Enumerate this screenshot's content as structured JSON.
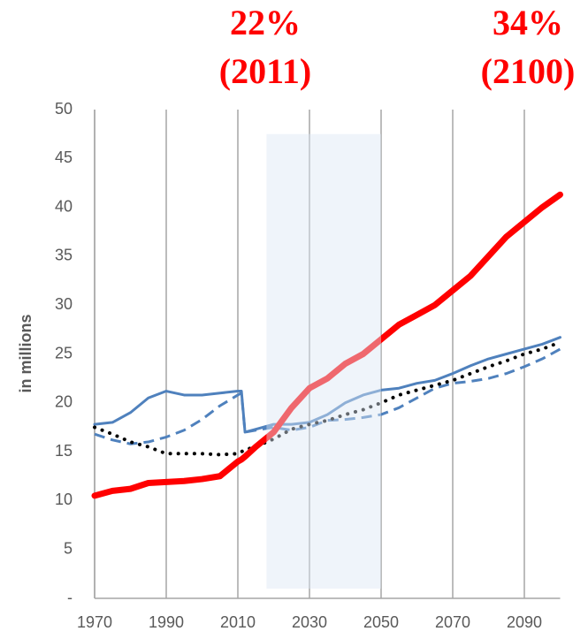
{
  "chart_data": {
    "type": "line",
    "y_label": "in millions",
    "annotations": [
      "22%",
      "(2011)",
      "34%",
      "(2100)"
    ],
    "annotation_color": "#ff0000",
    "x": [
      1970,
      1975,
      1980,
      1985,
      1990,
      1995,
      2000,
      2005,
      2010,
      2011,
      2012,
      2015,
      2020,
      2025,
      2030,
      2035,
      2040,
      2045,
      2050,
      2055,
      2060,
      2065,
      2070,
      2075,
      2080,
      2085,
      2090,
      2095,
      2100
    ],
    "series": [
      {
        "color": "#4f81bd",
        "style": "solid",
        "width": 3,
        "values": [
          17.8,
          18,
          19,
          20.5,
          21.2,
          20.8,
          20.8,
          21,
          21.2,
          21.2,
          17,
          17.3,
          17.8,
          17.8,
          18,
          18.8,
          20,
          20.8,
          21.3,
          21.5,
          22,
          22.3,
          23,
          23.8,
          24.5,
          25,
          25.5,
          26,
          26.7
        ]
      },
      {
        "color": "#4f81bd",
        "style": "dashed",
        "width": 3,
        "values": [
          16.8,
          16.2,
          15.8,
          16,
          16.5,
          17.2,
          18.3,
          19.7,
          20.8,
          21,
          17,
          17.2,
          17.5,
          17.2,
          17.5,
          18.2,
          18.3,
          18.5,
          18.8,
          19.5,
          20.5,
          21.5,
          22,
          22.2,
          22.5,
          23,
          23.7,
          24.5,
          25.5
        ]
      },
      {
        "color": "#000000",
        "style": "dotted",
        "width": 4,
        "values": [
          17.5,
          16.8,
          16,
          15.5,
          14.8,
          14.8,
          14.8,
          14.7,
          14.8,
          15,
          15.2,
          15.5,
          16.3,
          17.3,
          17.8,
          18.2,
          18.8,
          19.3,
          20,
          20.8,
          21.3,
          21.8,
          22.3,
          23,
          23.7,
          24.3,
          25,
          25.5,
          26.2
        ]
      },
      {
        "color": "#ff0000",
        "style": "solid",
        "width": 7,
        "values": [
          10.5,
          11,
          11.2,
          11.8,
          11.9,
          12,
          12.2,
          12.5,
          14,
          14.2,
          14.5,
          15.5,
          17,
          19.5,
          21.5,
          22.5,
          24,
          25,
          26.5,
          28,
          29,
          30,
          31.5,
          33,
          35,
          37,
          38.5,
          40,
          41.3
        ]
      }
    ],
    "shade": {
      "x": [
        2018,
        2050
      ],
      "y": [
        1,
        47.5
      ],
      "color": "#dce6f5"
    },
    "xlim": [
      1970,
      2100
    ],
    "xticks": [
      1970,
      1990,
      2010,
      2030,
      2050,
      2070,
      2090
    ],
    "ylim": [
      0,
      50
    ],
    "yticks": [
      {
        "value": 0,
        "label": "-"
      },
      5,
      10,
      15,
      20,
      25,
      30,
      35,
      40,
      45,
      50
    ],
    "grid": "x"
  }
}
